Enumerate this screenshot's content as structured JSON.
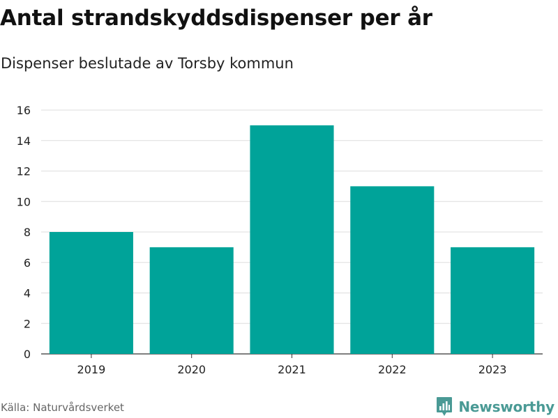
{
  "chart_data": {
    "type": "bar",
    "title": "Antal strandskyddsdispenser per år",
    "subtitle": "Dispenser beslutade av Torsby kommun",
    "categories": [
      "2019",
      "2020",
      "2021",
      "2022",
      "2023"
    ],
    "values": [
      8,
      7,
      15,
      11,
      7
    ],
    "xlabel": "",
    "ylabel": "",
    "ylim": [
      0,
      16
    ],
    "yticks": [
      0,
      2,
      4,
      6,
      8,
      10,
      12,
      14,
      16
    ],
    "grid": true,
    "bar_color": "#00a399"
  },
  "footer": {
    "source": "Källa: Naturvårdsverket",
    "brand": "Newsworthy",
    "brand_icon": "newsworthy-logo-icon",
    "brand_color": "#4a9a95"
  }
}
